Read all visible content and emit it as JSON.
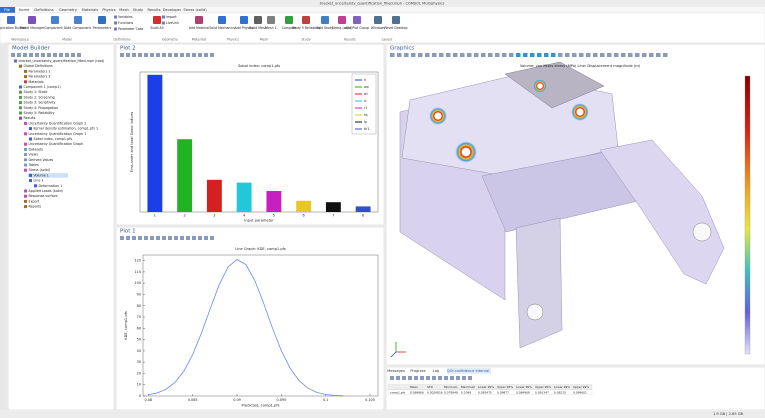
{
  "window": {
    "title": "bracket_uncertainty_quantification_filled.mph - COMSOL Multiphysics"
  },
  "menu": {
    "tabs": [
      "File",
      "Home",
      "Definitions",
      "Geometry",
      "Materials",
      "Physics",
      "Mesh",
      "Study",
      "Results",
      "Developer",
      "Stress (solid)"
    ]
  },
  "ribbon": {
    "buttons": [
      "Application Builder",
      "Model Manager",
      "Component 1",
      "Add Component",
      "Parameters",
      "Build All",
      "Add Material",
      "Solid Mechanics",
      "Add Physics",
      "Build Mesh",
      "Mesh 1",
      "Compute",
      "Study 5 Reliability",
      "Add Study",
      "Stress (solid)",
      "Add Plot Group",
      "Windows",
      "Reset Desktop"
    ],
    "small_buttons": [
      "Variables",
      "Functions",
      "Parameter Case",
      "Import",
      "LiveLink"
    ],
    "groups": [
      "Workspace",
      "Model",
      "Definitions",
      "Geometry",
      "Materials",
      "Physics",
      "Mesh",
      "Study",
      "Results",
      "Layout"
    ]
  },
  "model_builder": {
    "title": "Model Builder",
    "items": [
      "bracket_uncertainty_quantification_filled.mph (root)",
      "Global Definitions",
      "Parameters 1",
      "Parameters 2",
      "Materials",
      "Component 1 (comp1)",
      "Study 1: Static",
      "Study 2: Screening",
      "Study 3: Sensitivity",
      "Study 4: Propagation",
      "Study 5: Reliability",
      "Results",
      "Uncertainty Quantification Graph 2",
      "Kernel density estimation, comp1.pfs 1",
      "Uncertainty Quantification Graph 1",
      "Sobol index, comp1.pfs",
      "Uncertainty Quantification Graph",
      "Datasets",
      "Views",
      "Derived Values",
      "Tables",
      "Stress (solid)",
      "Volume 1",
      "Line 1",
      "Deformation 1",
      "Applied Loads (solid)",
      "Response surface",
      "Export",
      "Reports"
    ]
  },
  "plot2": {
    "tab": "Plot 2",
    "chart": {
      "type": "bar",
      "title": "Sobol index: comp1.pfs",
      "x_label": "Input parameter",
      "y_label": "First-order and total Sobol indices",
      "categories": [
        "1",
        "2",
        "3",
        "4",
        "5",
        "6",
        "7",
        "8"
      ],
      "values": [
        0.98,
        0.52,
        0.23,
        0.21,
        0.15,
        0.08,
        0.07,
        0.04
      ],
      "colors": [
        "#1a3ee8",
        "#22b322",
        "#d42020",
        "#20c8d8",
        "#c820c0",
        "#e8c820",
        "#111111",
        "#3050d0"
      ],
      "legend": [
        "h",
        "wp",
        "wl",
        "lc",
        "r1",
        "hs",
        "lp",
        "th1"
      ],
      "ylim": [
        0,
        1
      ]
    }
  },
  "plot1": {
    "tab": "Plot 1",
    "chart": {
      "type": "line",
      "title": "Line Graph: KDE, comp1.pfs",
      "x_label": "Predicted, comp1.pfs",
      "y_label": "KDE, comp1.pfs",
      "color": "#6b8cf0",
      "x": [
        0.08,
        0.081,
        0.082,
        0.083,
        0.084,
        0.085,
        0.086,
        0.087,
        0.088,
        0.089,
        0.09,
        0.091,
        0.092,
        0.093,
        0.094,
        0.095,
        0.096,
        0.097,
        0.098,
        0.099,
        0.1,
        0.101,
        0.102
      ],
      "values": [
        1.1,
        2.7,
        6.0,
        12.0,
        21.9,
        36.7,
        55.9,
        77.8,
        98.8,
        114.5,
        121.0,
        116.6,
        102.5,
        82.3,
        60.2,
        40.2,
        24.5,
        13.6,
        6.9,
        3.2,
        1.3,
        0.5,
        0.2
      ],
      "xlim": [
        0.0794,
        0.1059
      ],
      "ylim": [
        0,
        125
      ],
      "xticks": [
        0.08,
        0.085,
        0.09,
        0.095,
        0.1,
        0.105
      ],
      "yticks": [
        0,
        10,
        20,
        30,
        40,
        50,
        60,
        70,
        80,
        90,
        100,
        110,
        120
      ]
    }
  },
  "graphics": {
    "tab": "Graphics",
    "title": "Volume: von Mises stress (MPa)  Line: Displacement magnitude (m)"
  },
  "messages": {
    "tabs": [
      "Messages",
      "Progress",
      "Log",
      "QOI confidence interval"
    ],
    "table": {
      "header": [
        "Mean",
        "STD",
        "Minimum",
        "Maximum",
        "Lower 95%",
        "Upper 95%",
        "Lower 90%",
        "Upper 90%",
        "Lower 99%",
        "Upper 99%"
      ],
      "rows": [
        [
          "comp1.pfs",
          "0.089866",
          "0.0026816",
          "0.079848",
          "0.1098",
          "0.083475",
          "0.09877",
          "0.084968",
          "0.091347",
          "0.08215",
          "0.099601"
        ]
      ]
    }
  },
  "status": {
    "memory": "1.9 GB | 2.65 GB"
  }
}
